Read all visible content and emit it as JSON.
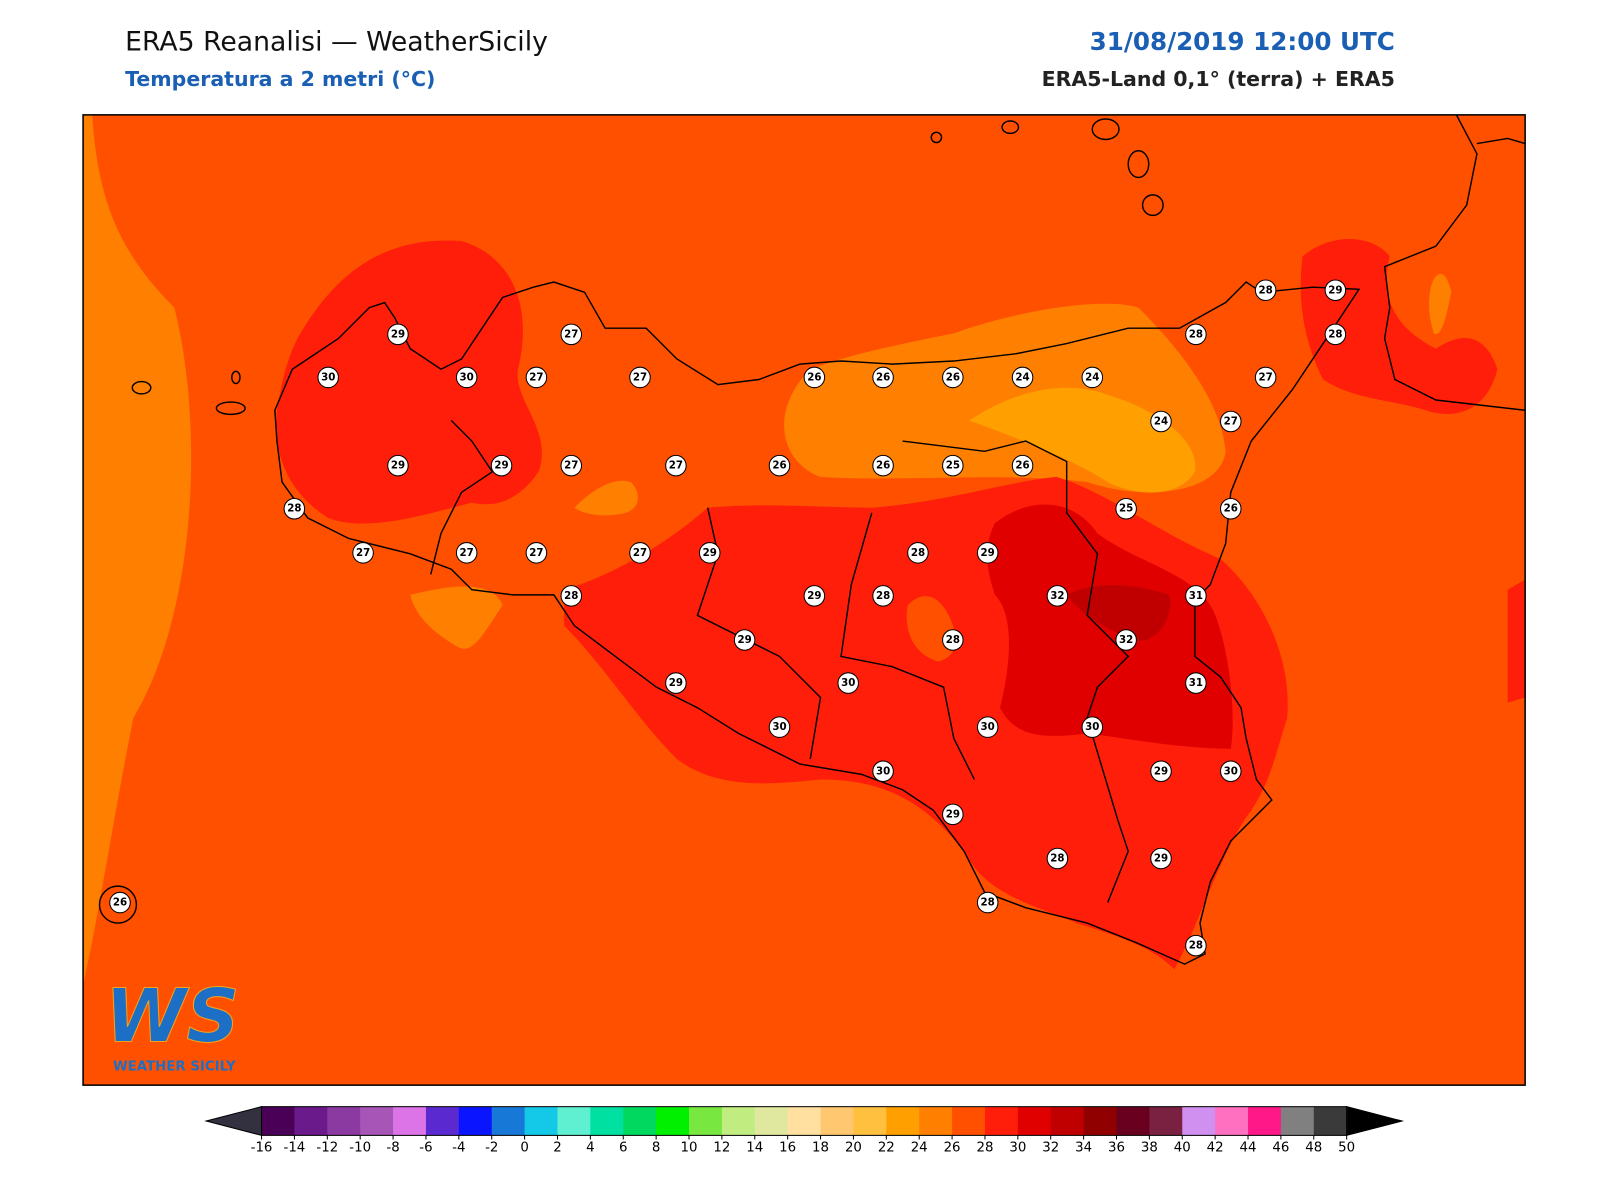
{
  "header": {
    "title": "ERA5 Reanalisi — WeatherSicily",
    "subtitle": "Temperatura a 2 metri (°C)",
    "datetime": "31/08/2019 12:00 UTC",
    "source": "ERA5-Land 0,1° (terra) + ERA5"
  },
  "stations": [
    29,
    27,
    30,
    30,
    27,
    27,
    26,
    26,
    26,
    24,
    24,
    28,
    29,
    28,
    28,
    27,
    24,
    27,
    29,
    29,
    27,
    27,
    26,
    26,
    25,
    26,
    25,
    26,
    28,
    27,
    27,
    27,
    27,
    29,
    28,
    29,
    28,
    29,
    28,
    32,
    31,
    29,
    28,
    32,
    29,
    30,
    31,
    30,
    30,
    30,
    30,
    29,
    30,
    29,
    28,
    29,
    28,
    28,
    26
  ],
  "logo": {
    "mark": "WS",
    "text": "WEATHER SICILY"
  },
  "colorbar": {
    "ticks": [
      -16,
      -14,
      -12,
      -10,
      -8,
      -6,
      -4,
      -2,
      0,
      2,
      4,
      6,
      8,
      10,
      12,
      14,
      16,
      18,
      20,
      22,
      24,
      26,
      28,
      30,
      32,
      34,
      36,
      38,
      40,
      42,
      44,
      46,
      48,
      50
    ],
    "colors": [
      "#4a0057",
      "#6a1a8a",
      "#8a3aa0",
      "#a855b8",
      "#dc74e8",
      "#5a2ad0",
      "#0a14ff",
      "#1878d8",
      "#14c8e8",
      "#5ef0d0",
      "#00e0a0",
      "#00d860",
      "#00f000",
      "#78e840",
      "#c0ec80",
      "#e0e8a0",
      "#ffe0a0",
      "#ffc870",
      "#ffc040",
      "#ffa000",
      "#ff8000",
      "#ff5000",
      "#ff1e0a",
      "#e00000",
      "#c00000",
      "#900000",
      "#6a0020",
      "#7a2040",
      "#d090f0",
      "#ff70c0",
      "#ff1888",
      "#808080",
      "#3a3a3a"
    ],
    "under_color": "#333040",
    "over_color": "#000000"
  }
}
